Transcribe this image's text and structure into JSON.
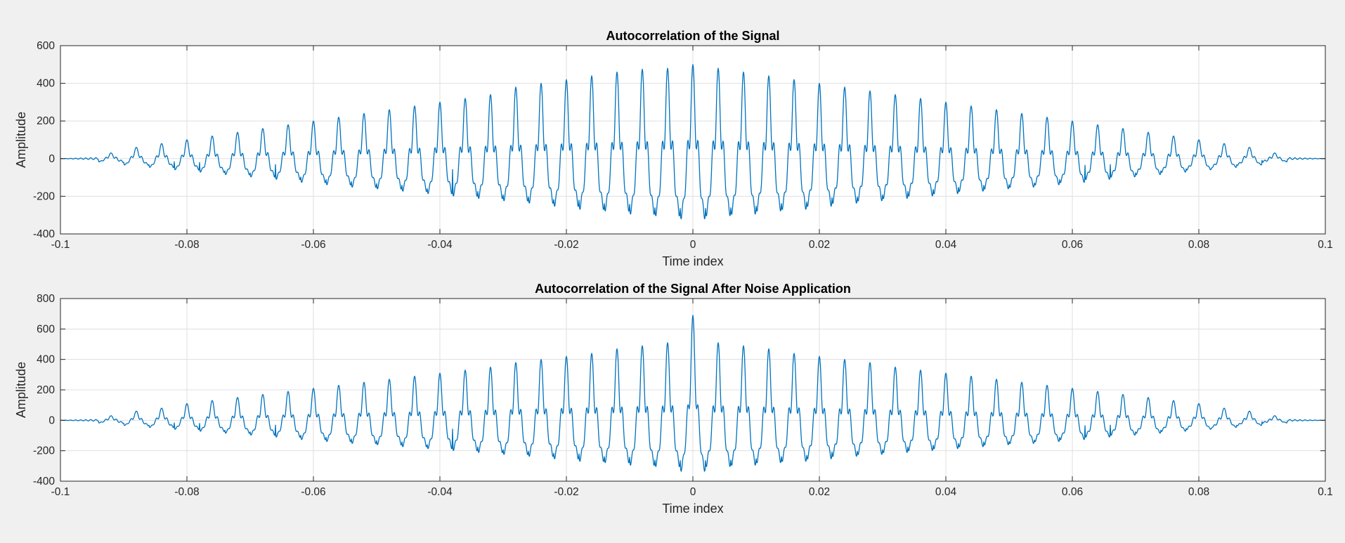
{
  "figure": {
    "background": "#f0f0f0",
    "line_color": "#0072bd"
  },
  "chart_data": [
    {
      "type": "line",
      "title": "Autocorrelation of the Signal",
      "xlabel": "Time index",
      "ylabel": "Amplitude",
      "xlim": [
        -0.1,
        0.1
      ],
      "ylim": [
        -400,
        600
      ],
      "xticks": [
        -0.1,
        -0.08,
        -0.06,
        -0.04,
        -0.02,
        0,
        0.02,
        0.04,
        0.06,
        0.08,
        0.1
      ],
      "xtick_labels": [
        "-0.1",
        "-0.08",
        "-0.06",
        "-0.04",
        "-0.02",
        "0",
        "0.02",
        "0.04",
        "0.06",
        "0.08",
        "0.1"
      ],
      "yticks": [
        -400,
        -200,
        0,
        200,
        400,
        600
      ],
      "ytick_labels": [
        "-400",
        "-200",
        "0",
        "200",
        "400",
        "600"
      ],
      "grid": true,
      "series": [
        {
          "color": "#0072bd",
          "peak_spacing": 0.004,
          "peak_times": [
            -0.092,
            -0.088,
            -0.084,
            -0.08,
            -0.076,
            -0.072,
            -0.068,
            -0.064,
            -0.06,
            -0.056,
            -0.052,
            -0.048,
            -0.044,
            -0.04,
            -0.036,
            -0.032,
            -0.028,
            -0.024,
            -0.02,
            -0.016,
            -0.012,
            -0.008,
            -0.004,
            0,
            0.004,
            0.008,
            0.012,
            0.016,
            0.02,
            0.024,
            0.028,
            0.032,
            0.036,
            0.04,
            0.044,
            0.048,
            0.052,
            0.056,
            0.06,
            0.064,
            0.068,
            0.072,
            0.076,
            0.08,
            0.084,
            0.088,
            0.092
          ],
          "peak_values": [
            30,
            60,
            80,
            100,
            120,
            140,
            160,
            180,
            200,
            220,
            240,
            260,
            280,
            300,
            320,
            340,
            380,
            400,
            420,
            440,
            460,
            475,
            480,
            500,
            480,
            460,
            440,
            420,
            400,
            380,
            360,
            340,
            320,
            300,
            280,
            260,
            240,
            220,
            200,
            180,
            160,
            140,
            120,
            100,
            80,
            60,
            30
          ],
          "trough_values": [
            -20,
            -40,
            -55,
            -70,
            -85,
            -100,
            -115,
            -130,
            -150,
            -165,
            -180,
            -190,
            -205,
            -220,
            -235,
            -250,
            -265,
            -280,
            -300,
            -320,
            -330,
            -350,
            -360,
            -380,
            -360,
            -350,
            -330,
            -320,
            -300,
            -280,
            -265,
            -250,
            -235,
            -220,
            -205,
            -190,
            -180,
            -165,
            -150,
            -130,
            -115,
            -100,
            -85,
            -70,
            -55,
            -40,
            -20
          ],
          "inner_oscillation_amplitude_at_center": 170
        }
      ]
    },
    {
      "type": "line",
      "title": "Autocorrelation of the Signal After Noise Application",
      "xlabel": "Time index",
      "ylabel": "Amplitude",
      "xlim": [
        -0.1,
        0.1
      ],
      "ylim": [
        -400,
        800
      ],
      "xticks": [
        -0.1,
        -0.08,
        -0.06,
        -0.04,
        -0.02,
        0,
        0.02,
        0.04,
        0.06,
        0.08,
        0.1
      ],
      "xtick_labels": [
        "-0.1",
        "-0.08",
        "-0.06",
        "-0.04",
        "-0.02",
        "0",
        "0.02",
        "0.04",
        "0.06",
        "0.08",
        "0.1"
      ],
      "yticks": [
        -400,
        -200,
        0,
        200,
        400,
        600,
        800
      ],
      "ytick_labels": [
        "-400",
        "-200",
        "0",
        "200",
        "400",
        "600",
        "800"
      ],
      "grid": true,
      "series": [
        {
          "color": "#0072bd",
          "peak_spacing": 0.004,
          "peak_times": [
            -0.092,
            -0.088,
            -0.084,
            -0.08,
            -0.076,
            -0.072,
            -0.068,
            -0.064,
            -0.06,
            -0.056,
            -0.052,
            -0.048,
            -0.044,
            -0.04,
            -0.036,
            -0.032,
            -0.028,
            -0.024,
            -0.02,
            -0.016,
            -0.012,
            -0.008,
            -0.004,
            0,
            0.004,
            0.008,
            0.012,
            0.016,
            0.02,
            0.024,
            0.028,
            0.032,
            0.036,
            0.04,
            0.044,
            0.048,
            0.052,
            0.056,
            0.06,
            0.064,
            0.068,
            0.072,
            0.076,
            0.08,
            0.084,
            0.088,
            0.092
          ],
          "peak_values": [
            30,
            60,
            80,
            110,
            130,
            150,
            170,
            190,
            210,
            230,
            250,
            270,
            290,
            310,
            330,
            350,
            380,
            400,
            420,
            440,
            470,
            490,
            510,
            690,
            510,
            490,
            470,
            440,
            420,
            400,
            380,
            350,
            330,
            310,
            290,
            270,
            250,
            230,
            210,
            190,
            170,
            150,
            130,
            110,
            80,
            60,
            30
          ],
          "trough_values": [
            -20,
            -40,
            -55,
            -70,
            -85,
            -100,
            -115,
            -130,
            -150,
            -165,
            -180,
            -190,
            -205,
            -220,
            -235,
            -250,
            -265,
            -280,
            -300,
            -320,
            -330,
            -350,
            -360,
            -400,
            -360,
            -350,
            -330,
            -320,
            -300,
            -280,
            -265,
            -250,
            -235,
            -220,
            -205,
            -190,
            -180,
            -165,
            -150,
            -130,
            -115,
            -100,
            -85,
            -70,
            -55,
            -40,
            -20
          ],
          "inner_oscillation_amplitude_at_center": 170
        }
      ]
    }
  ]
}
